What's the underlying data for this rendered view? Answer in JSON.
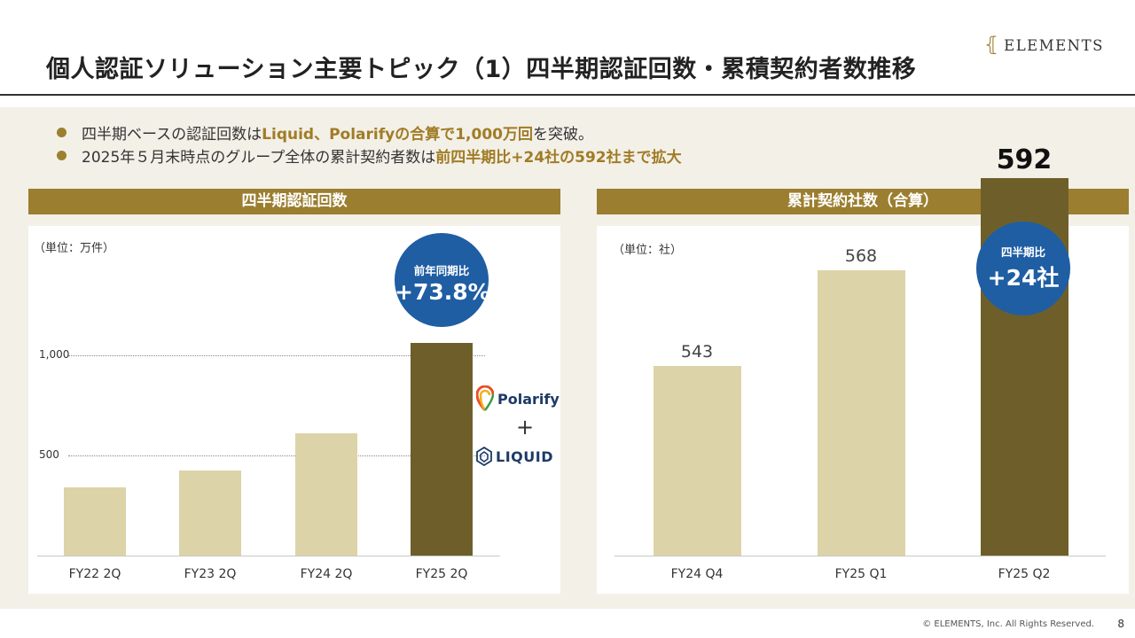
{
  "title": "個人認証ソリューション主要トピック（1）四半期認証回数・累積契約者数推移",
  "brand": {
    "name": "ELEMENTS",
    "mark": "⦃"
  },
  "bullets": [
    {
      "pre": "四半期ベースの認証回数は",
      "bold": "Liquid、Polarifyの合算で1,000万回",
      "post": "を突破。"
    },
    {
      "pre": "2025年５月末時点のグループ全体の累計契約者数は",
      "bold": "前四半期比+24社の592社まで拡大",
      "post": ""
    }
  ],
  "left_panel": {
    "header": "四半期認証回数",
    "unit": "（単位：万件）",
    "badge_line1": "前年同期比",
    "badge_line2": "+73.8%",
    "plus_sign": "+",
    "polarify": "Polarify",
    "liquid": "LIQUID"
  },
  "right_panel": {
    "header": "累計契約社数（合算）",
    "unit": "（単位：社）",
    "badge_line1": "四半期比",
    "badge_line2": "+24社"
  },
  "chart_data": [
    {
      "type": "bar",
      "title": "四半期認証回数",
      "categories": [
        "FY22 2Q",
        "FY23 2Q",
        "FY24 2Q",
        "FY25 2Q"
      ],
      "values": [
        340,
        425,
        610,
        1060
      ],
      "ylim": [
        0,
        1100
      ],
      "yticks": [
        500,
        1000
      ],
      "ytick_labels": [
        "500",
        "1,000"
      ],
      "grid": "dotted at ticks",
      "highlight_index": 3,
      "colors": {
        "normal": "#ddd3a8",
        "highlight": "#6e5f2a"
      }
    },
    {
      "type": "bar",
      "title": "累計契約社数（合算）",
      "categories": [
        "FY24 Q4",
        "FY25 Q1",
        "FY25 Q2"
      ],
      "values": [
        543,
        568,
        592
      ],
      "data_labels": [
        "543",
        "568",
        "592"
      ],
      "highlight_index": 2,
      "colors": {
        "normal": "#ddd3a8",
        "highlight": "#6e5f2a"
      }
    }
  ],
  "footer": "© ELEMENTS, Inc. All Rights Reserved.",
  "page_number": "8",
  "colors": {
    "gold": "#9b7e2f",
    "blue_badge": "#1f5ea3",
    "background": "#f3f0e8"
  }
}
